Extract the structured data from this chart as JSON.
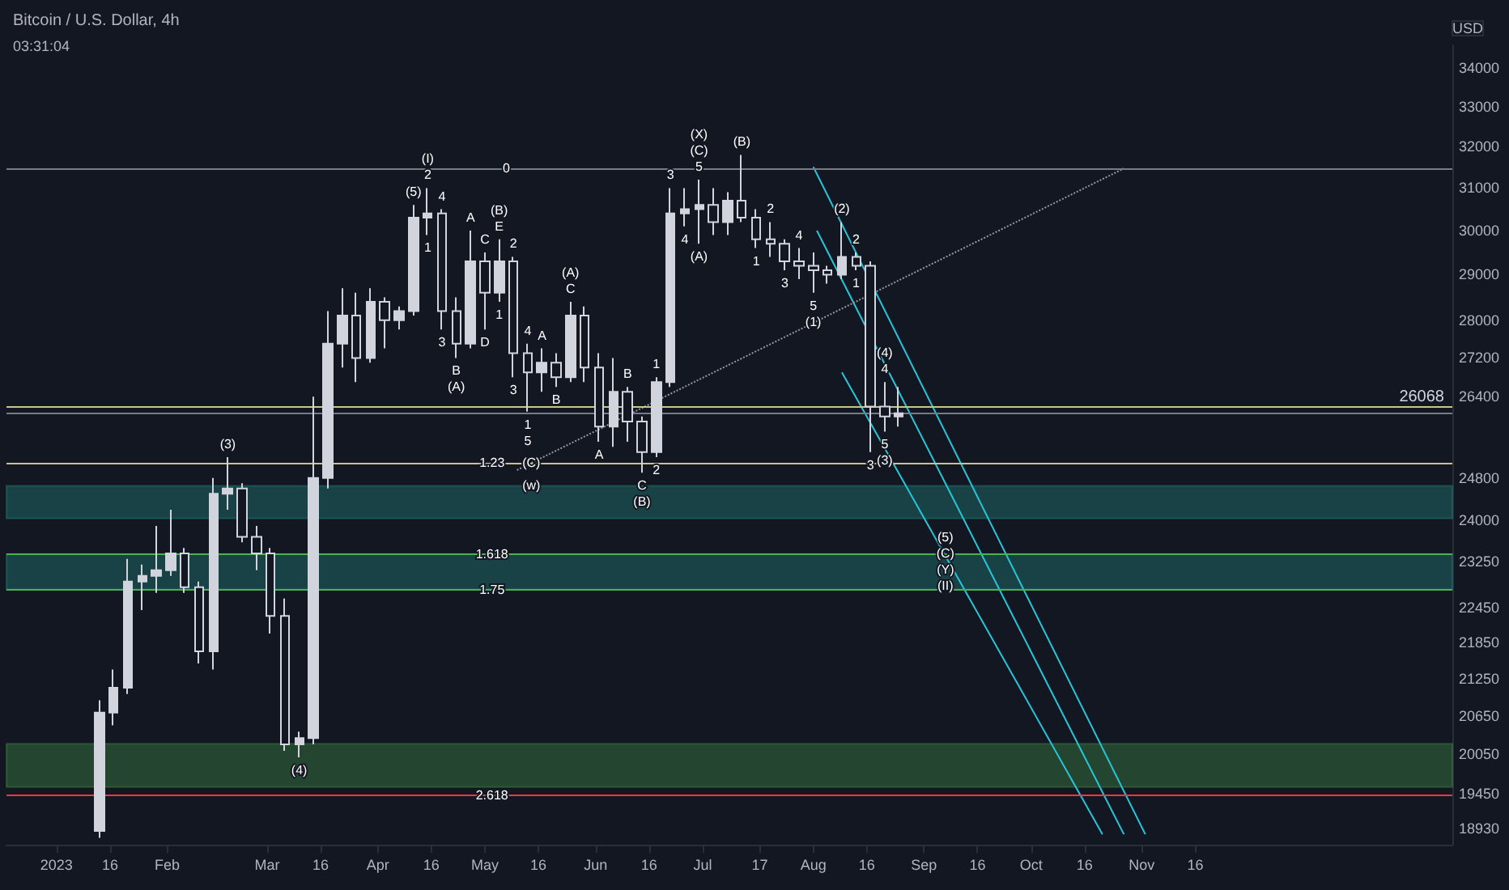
{
  "chart_data": {
    "type": "candlestick",
    "title": "Bitcoin / U.S. Dollar, 4h",
    "ylabel": "USD",
    "log": true,
    "grid": false,
    "color": "#d1d4dc",
    "x": [
      "2023-01-13",
      "2023-01-17",
      "2023-01-21",
      "2023-01-25",
      "2023-01-29",
      "2023-02-02",
      "2023-02-06",
      "2023-02-10",
      "2023-02-14",
      "2023-02-18",
      "2023-02-22",
      "2023-02-26",
      "2023-03-02",
      "2023-03-06",
      "2023-03-10",
      "2023-03-14",
      "2023-03-18",
      "2023-03-22",
      "2023-03-26",
      "2023-03-30",
      "2023-04-03",
      "2023-04-07",
      "2023-04-11",
      "2023-04-15",
      "2023-04-19",
      "2023-04-23",
      "2023-04-27",
      "2023-05-01",
      "2023-05-05",
      "2023-05-09",
      "2023-05-13",
      "2023-05-17",
      "2023-05-21",
      "2023-05-25",
      "2023-05-29",
      "2023-06-02",
      "2023-06-06",
      "2023-06-10",
      "2023-06-14",
      "2023-06-18",
      "2023-06-22",
      "2023-06-26",
      "2023-06-30",
      "2023-07-04",
      "2023-07-08",
      "2023-07-12",
      "2023-07-16",
      "2023-07-20",
      "2023-07-24",
      "2023-07-28",
      "2023-08-01",
      "2023-08-05",
      "2023-08-09",
      "2023-08-13",
      "2023-08-17",
      "2023-08-21",
      "2023-08-25"
    ],
    "ohlc": [
      [
        18900,
        20900,
        18800,
        20700
      ],
      [
        20700,
        21400,
        20500,
        21100
      ],
      [
        21100,
        23300,
        21000,
        22900
      ],
      [
        22900,
        23200,
        22400,
        23000
      ],
      [
        23000,
        23900,
        22700,
        23100
      ],
      [
        23100,
        24200,
        23000,
        23400
      ],
      [
        23400,
        23500,
        22700,
        22800
      ],
      [
        22800,
        22900,
        21500,
        21700
      ],
      [
        21700,
        24800,
        21400,
        24500
      ],
      [
        24500,
        25200,
        24200,
        24600
      ],
      [
        24600,
        24700,
        23600,
        23700
      ],
      [
        23700,
        23900,
        23100,
        23400
      ],
      [
        23400,
        23500,
        22000,
        22300
      ],
      [
        22300,
        22600,
        20100,
        20200
      ],
      [
        20200,
        20400,
        20000,
        20300
      ],
      [
        20300,
        26400,
        20200,
        24800
      ],
      [
        24800,
        28200,
        24600,
        27500
      ],
      [
        27500,
        28700,
        27000,
        28100
      ],
      [
        28100,
        28600,
        26700,
        27200
      ],
      [
        27200,
        28700,
        27100,
        28400
      ],
      [
        28400,
        28500,
        27400,
        28000
      ],
      [
        28000,
        28300,
        27800,
        28200
      ],
      [
        28200,
        30600,
        28100,
        30300
      ],
      [
        30300,
        31000,
        29900,
        30400
      ],
      [
        30400,
        30500,
        27800,
        28200
      ],
      [
        28200,
        28500,
        27200,
        27500
      ],
      [
        27500,
        30000,
        27400,
        29300
      ],
      [
        29300,
        29500,
        27800,
        28600
      ],
      [
        28600,
        29800,
        28400,
        29300
      ],
      [
        29300,
        29400,
        26800,
        27300
      ],
      [
        27300,
        27500,
        26100,
        26900
      ],
      [
        26900,
        27400,
        26500,
        27100
      ],
      [
        27100,
        27300,
        26600,
        26800
      ],
      [
        26800,
        28400,
        26700,
        28100
      ],
      [
        28100,
        28300,
        26700,
        27000
      ],
      [
        27000,
        27300,
        25500,
        25800
      ],
      [
        25800,
        27200,
        25400,
        26500
      ],
      [
        26500,
        26600,
        25500,
        25900
      ],
      [
        25900,
        26000,
        24900,
        25300
      ],
      [
        25300,
        26800,
        25200,
        26700
      ],
      [
        26700,
        31000,
        26600,
        30400
      ],
      [
        30400,
        31000,
        30100,
        30500
      ],
      [
        30500,
        31200,
        29700,
        30600
      ],
      [
        30600,
        31000,
        29900,
        30200
      ],
      [
        30200,
        30900,
        29900,
        30700
      ],
      [
        30700,
        31800,
        30200,
        30300
      ],
      [
        30300,
        30500,
        29600,
        29800
      ],
      [
        29800,
        30200,
        29400,
        29700
      ],
      [
        29700,
        29800,
        29100,
        29300
      ],
      [
        29300,
        29600,
        28900,
        29200
      ],
      [
        29200,
        29500,
        28600,
        29100
      ],
      [
        29100,
        29200,
        28800,
        29000
      ],
      [
        29000,
        30200,
        28900,
        29400
      ],
      [
        29400,
        29500,
        29100,
        29200
      ],
      [
        29200,
        29300,
        25300,
        26200
      ],
      [
        26200,
        26700,
        25700,
        26000
      ],
      [
        26000,
        26600,
        25800,
        26068
      ]
    ],
    "series": [
      {
        "type": "line",
        "color": "#26c6da",
        "x": [
          "2023-08-01",
          "2023-11-02"
        ],
        "values": [
          31510,
          18850
        ]
      },
      {
        "type": "line",
        "color": "#26c6da",
        "x": [
          "2023-08-02",
          "2023-10-27"
        ],
        "values": [
          30000,
          18850
        ]
      },
      {
        "type": "line",
        "color": "#26c6da",
        "x": [
          "2023-08-09",
          "2023-10-21"
        ],
        "values": [
          26900,
          18850
        ]
      },
      {
        "type": "line",
        "color": "#9598a1",
        "line_style": "dotted",
        "x": [
          "2023-05-10",
          "2023-10-27"
        ],
        "values": [
          24950,
          31470
        ]
      }
    ],
    "xlim": [
      "2022-12-18",
      "2024-01-27"
    ],
    "xticks": [
      {
        "value": "2023-01-01",
        "label": "2023"
      },
      {
        "value": "2023-01-16",
        "label": "16"
      },
      {
        "value": "2023-02-01",
        "label": "Feb"
      },
      {
        "value": "2023-03-01",
        "label": "Mar"
      },
      {
        "value": "2023-03-16",
        "label": "16"
      },
      {
        "value": "2023-04-01",
        "label": "Apr"
      },
      {
        "value": "2023-04-16",
        "label": "16"
      },
      {
        "value": "2023-05-01",
        "label": "May"
      },
      {
        "value": "2023-05-16",
        "label": "16"
      },
      {
        "value": "2023-06-01",
        "label": "Jun"
      },
      {
        "value": "2023-06-16",
        "label": "16"
      },
      {
        "value": "2023-07-01",
        "label": "Jul"
      },
      {
        "value": "2023-07-17",
        "label": "17"
      },
      {
        "value": "2023-08-01",
        "label": "Aug"
      },
      {
        "value": "2023-08-16",
        "label": "16"
      },
      {
        "value": "2023-09-01",
        "label": "Sep"
      },
      {
        "value": "2023-09-16",
        "label": "16"
      },
      {
        "value": "2023-10-01",
        "label": "Oct"
      },
      {
        "value": "2023-10-16",
        "label": "16"
      },
      {
        "value": "2023-11-01",
        "label": "Nov"
      },
      {
        "value": "2023-11-16",
        "label": "16"
      }
    ],
    "ylim": [
      18700,
      34600
    ],
    "yticks": [
      34000,
      33000,
      32000,
      31000,
      30000,
      29000,
      28000,
      27200,
      26400,
      24800,
      24000,
      23250,
      22450,
      21850,
      21250,
      20650,
      20050,
      19450,
      18930
    ],
    "ref_lines": [
      {
        "axis": "y",
        "value": 31470,
        "color": "#787b86"
      },
      {
        "axis": "y",
        "value": 26200,
        "color": "#c8c48a"
      },
      {
        "axis": "y",
        "value": 25090,
        "color": "#c8c48a"
      },
      {
        "axis": "y",
        "value": 23390,
        "color": "#4caf50"
      },
      {
        "axis": "y",
        "value": 22760,
        "color": "#4caf50"
      },
      {
        "axis": "y",
        "value": 19420,
        "color": "#f23645"
      },
      {
        "axis": "y",
        "value": 26068,
        "label": "26068",
        "color": "#787b86"
      }
    ],
    "bands": [
      {
        "axis": "y",
        "from": 24040,
        "to": 24650,
        "color": "#26a69a"
      },
      {
        "axis": "y",
        "from": 22760,
        "to": 23390,
        "color": "#26a69a"
      },
      {
        "axis": "y",
        "from": 19550,
        "to": 20210,
        "color": "#4caf50"
      }
    ],
    "annotations": [
      "03:31:04",
      {
        "text": "0",
        "x": "2023-05-07",
        "y": 31470
      },
      {
        "text": "1.23",
        "x": "2023-05-03",
        "y": 25090
      },
      {
        "text": "1.618",
        "x": "2023-05-03",
        "y": 23390
      },
      {
        "text": "1.75",
        "x": "2023-05-03",
        "y": 22760
      },
      {
        "text": "2.618",
        "x": "2023-05-03",
        "y": 19420
      },
      {
        "text": "(3)",
        "x": "2023-02-18",
        "y": 25200
      },
      {
        "text": "(4)",
        "x": "2023-03-10",
        "y": 20000
      },
      {
        "text": "(5)",
        "x": "2023-04-11",
        "y": 30600
      },
      {
        "text": "2",
        "x": "2023-04-15",
        "y": 31000
      },
      {
        "text": "(I)",
        "x": "2023-04-15",
        "y": 31000
      },
      {
        "text": "4",
        "x": "2023-04-19",
        "y": 30500
      },
      {
        "text": "1",
        "x": "2023-04-15",
        "y": 29900
      },
      {
        "text": "3",
        "x": "2023-04-19",
        "y": 27800
      },
      {
        "text": "A",
        "x": "2023-04-27",
        "y": 30000
      },
      {
        "text": "C",
        "x": "2023-05-01",
        "y": 29500
      },
      {
        "text": "E",
        "x": "2023-05-05",
        "y": 29800
      },
      {
        "text": "(B)",
        "x": "2023-05-05",
        "y": 29800
      },
      {
        "text": "2",
        "x": "2023-05-09",
        "y": 29400
      },
      {
        "text": "4",
        "x": "2023-05-13",
        "y": 27500
      },
      {
        "text": "1",
        "x": "2023-05-05",
        "y": 28400
      },
      {
        "text": "D",
        "x": "2023-05-01",
        "y": 27800
      },
      {
        "text": "B",
        "x": "2023-04-23",
        "y": 27200
      },
      {
        "text": "(A)",
        "x": "2023-04-23",
        "y": 27200
      },
      {
        "text": "3",
        "x": "2023-05-09",
        "y": 26800
      },
      {
        "text": "1",
        "x": "2023-05-13",
        "y": 26100
      },
      {
        "text": "5",
        "x": "2023-05-13",
        "y": 26100
      },
      {
        "text": "(C)",
        "x": "2023-05-14",
        "y": 25090
      },
      {
        "text": "(w)",
        "x": "2023-05-14",
        "y": 24650
      },
      {
        "text": "A",
        "x": "2023-05-17",
        "y": 27400
      },
      {
        "text": "C",
        "x": "2023-05-25",
        "y": 28400
      },
      {
        "text": "(A)",
        "x": "2023-05-25",
        "y": 28400
      },
      {
        "text": "B",
        "x": "2023-05-21",
        "y": 26600
      },
      {
        "text": "A",
        "x": "2023-06-02",
        "y": 25500
      },
      {
        "text": "B",
        "x": "2023-06-10",
        "y": 26600
      },
      {
        "text": "C",
        "x": "2023-06-14",
        "y": 24900
      },
      {
        "text": "(B)",
        "x": "2023-06-14",
        "y": 24900
      },
      {
        "text": "1",
        "x": "2023-06-18",
        "y": 26800
      },
      {
        "text": "2",
        "x": "2023-06-18",
        "y": 25200
      },
      {
        "text": "3",
        "x": "2023-06-22",
        "y": 31000
      },
      {
        "text": "4",
        "x": "2023-06-26",
        "y": 30100
      },
      {
        "text": "5",
        "x": "2023-06-30",
        "y": 31200
      },
      {
        "text": "(C)",
        "x": "2023-06-30",
        "y": 31200
      },
      {
        "text": "(X)",
        "x": "2023-06-30",
        "y": 31200
      },
      {
        "text": "(A)",
        "x": "2023-06-30",
        "y": 29700
      },
      {
        "text": "(B)",
        "x": "2023-07-12",
        "y": 31800
      },
      {
        "text": "2",
        "x": "2023-07-20",
        "y": 30200
      },
      {
        "text": "1",
        "x": "2023-07-16",
        "y": 29600
      },
      {
        "text": "3",
        "x": "2023-07-24",
        "y": 29100
      },
      {
        "text": "4",
        "x": "2023-07-28",
        "y": 29600
      },
      {
        "text": "5",
        "x": "2023-08-01",
        "y": 28600
      },
      {
        "text": "(1)",
        "x": "2023-08-01",
        "y": 28600
      },
      {
        "text": "(2)",
        "x": "2023-08-09",
        "y": 30200
      },
      {
        "text": "2",
        "x": "2023-08-13",
        "y": 29500
      },
      {
        "text": "1",
        "x": "2023-08-13",
        "y": 29100
      },
      {
        "text": "4",
        "x": "2023-08-21",
        "y": 26700
      },
      {
        "text": "(4)",
        "x": "2023-08-21",
        "y": 26700
      },
      {
        "text": "3",
        "x": "2023-08-17",
        "y": 25300
      },
      {
        "text": "5",
        "x": "2023-08-21",
        "y": 25700
      },
      {
        "text": "(3)",
        "x": "2023-08-21",
        "y": 25700
      },
      {
        "text": "(5)",
        "x": "2023-09-07",
        "y": 23250
      },
      {
        "text": "(C)",
        "x": "2023-09-07",
        "y": 23250
      },
      {
        "text": "(Y)",
        "x": "2023-09-07",
        "y": 23250
      },
      {
        "text": "(II)",
        "x": "2023-09-07",
        "y": 23250
      }
    ]
  }
}
